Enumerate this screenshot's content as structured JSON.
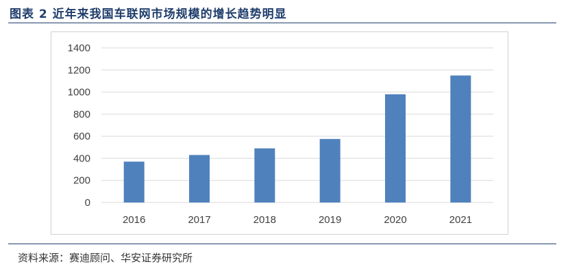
{
  "figure": {
    "title": "图表 2 近年来我国车联网市场规模的增长趋势明显",
    "source": "资料来源：赛迪顾问、华安证券研究所"
  },
  "colors": {
    "bar": "#4f81bd",
    "grid": "#d9d9d9",
    "axis_text": "#404040",
    "title": "#1f3d6b"
  },
  "chart_data": {
    "type": "bar",
    "title": "",
    "xlabel": "",
    "ylabel": "",
    "categories": [
      "2016",
      "2017",
      "2018",
      "2019",
      "2020",
      "2021"
    ],
    "values": [
      370,
      430,
      490,
      575,
      980,
      1150
    ],
    "ylim": [
      0,
      1400
    ],
    "yticks": [
      "0",
      "200",
      "400",
      "600",
      "800",
      "1000",
      "1200",
      "1400"
    ],
    "grid": true,
    "legend": "none"
  }
}
